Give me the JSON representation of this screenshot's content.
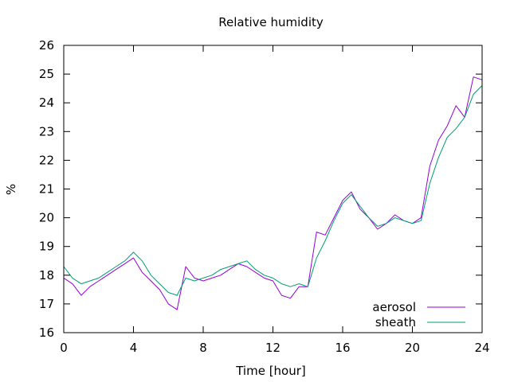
{
  "chart_data": {
    "type": "line",
    "title": "Relative humidity",
    "xlabel": "Time [hour]",
    "ylabel": "%",
    "xlim": [
      0,
      24
    ],
    "ylim": [
      16,
      26
    ],
    "xticks": [
      0,
      4,
      8,
      12,
      16,
      20,
      24
    ],
    "yticks": [
      16,
      17,
      18,
      19,
      20,
      21,
      22,
      23,
      24,
      25,
      26
    ],
    "grid": false,
    "legend_position": "bottom-right",
    "series": [
      {
        "name": "aerosol",
        "color": "#9400d3",
        "x": [
          0,
          0.5,
          1,
          1.5,
          2,
          2.5,
          3,
          3.5,
          4,
          4.5,
          5,
          5.5,
          6,
          6.5,
          7,
          7.5,
          8,
          8.5,
          9,
          9.5,
          10,
          10.5,
          11,
          11.5,
          12,
          12.5,
          13,
          13.5,
          14,
          14.5,
          15,
          15.5,
          16,
          16.5,
          17,
          17.5,
          18,
          18.5,
          19,
          19.5,
          20,
          20.5,
          21,
          21.5,
          22,
          22.5,
          23,
          23.5,
          24
        ],
        "y": [
          17.9,
          17.7,
          17.3,
          17.6,
          17.8,
          18.0,
          18.2,
          18.4,
          18.6,
          18.1,
          17.8,
          17.5,
          17.0,
          16.8,
          18.3,
          17.9,
          17.8,
          17.9,
          18.0,
          18.2,
          18.4,
          18.3,
          18.1,
          17.9,
          17.8,
          17.3,
          17.2,
          17.6,
          17.6,
          19.5,
          19.4,
          20.0,
          20.6,
          20.9,
          20.3,
          20.0,
          19.6,
          19.8,
          20.1,
          19.9,
          19.8,
          20.0,
          21.8,
          22.7,
          23.2,
          23.9,
          23.5,
          24.9,
          24.8
        ]
      },
      {
        "name": "sheath",
        "color": "#009e73",
        "x": [
          0,
          0.5,
          1,
          1.5,
          2,
          2.5,
          3,
          3.5,
          4,
          4.5,
          5,
          5.5,
          6,
          6.5,
          7,
          7.5,
          8,
          8.5,
          9,
          9.5,
          10,
          10.5,
          11,
          11.5,
          12,
          12.5,
          13,
          13.5,
          14,
          14.5,
          15,
          15.5,
          16,
          16.5,
          17,
          17.5,
          18,
          18.5,
          19,
          19.5,
          20,
          20.5,
          21,
          21.5,
          22,
          22.5,
          23,
          23.5,
          24
        ],
        "y": [
          18.3,
          17.9,
          17.7,
          17.8,
          17.9,
          18.1,
          18.3,
          18.5,
          18.8,
          18.5,
          18.0,
          17.7,
          17.4,
          17.3,
          17.9,
          17.8,
          17.9,
          18.0,
          18.2,
          18.3,
          18.4,
          18.5,
          18.2,
          18.0,
          17.9,
          17.7,
          17.6,
          17.7,
          17.6,
          18.6,
          19.2,
          19.9,
          20.5,
          20.8,
          20.4,
          20.0,
          19.7,
          19.8,
          20.0,
          19.9,
          19.8,
          19.9,
          21.2,
          22.1,
          22.8,
          23.1,
          23.5,
          24.3,
          24.6
        ]
      }
    ]
  }
}
